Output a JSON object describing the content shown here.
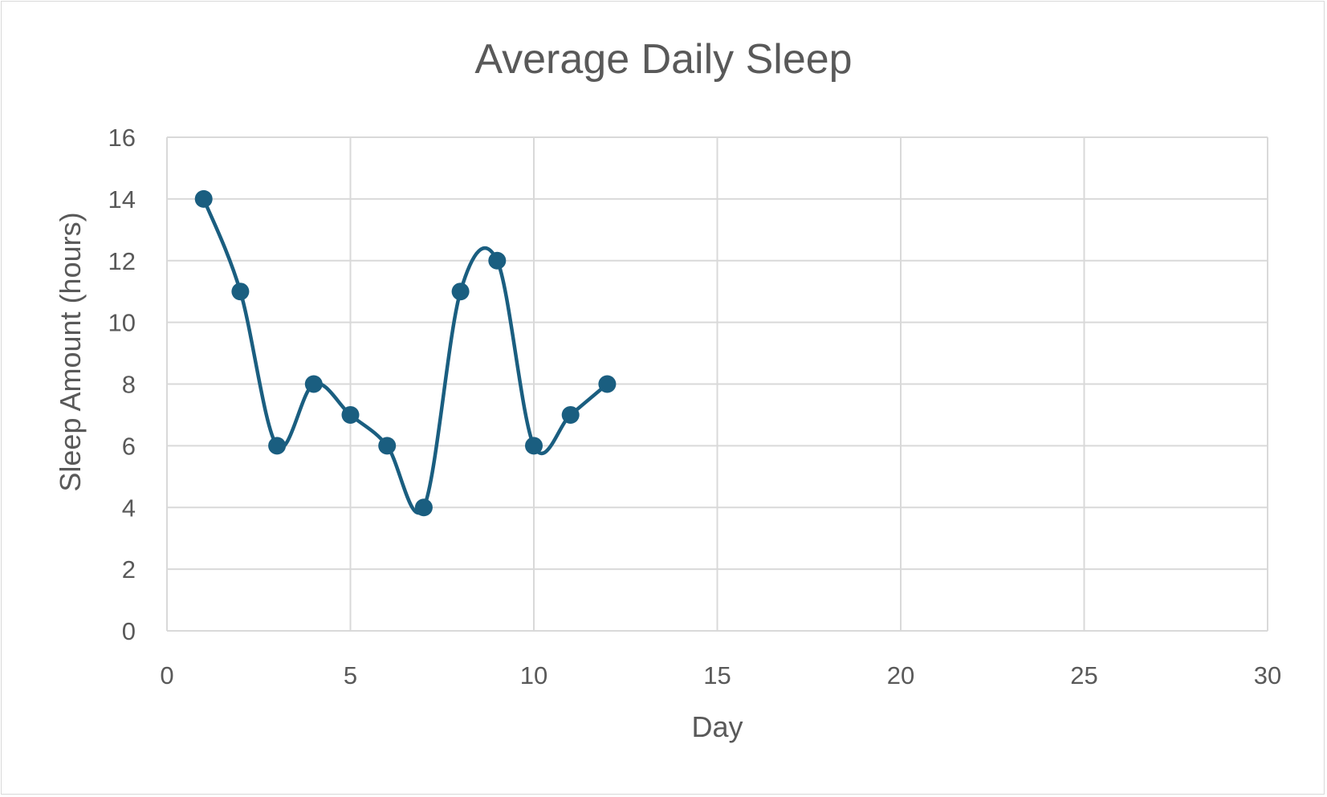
{
  "chart_data": {
    "type": "scatter",
    "title": "Average Daily Sleep",
    "xlabel": "Day",
    "ylabel": "Sleep Amount (hours)",
    "xlim": [
      0,
      30
    ],
    "ylim": [
      0,
      16
    ],
    "x_ticks": [
      "0",
      "5",
      "10",
      "15",
      "20",
      "25",
      "30"
    ],
    "y_ticks": [
      "0",
      "2",
      "4",
      "6",
      "8",
      "10",
      "12",
      "14",
      "16"
    ],
    "grid": true,
    "legend": "none",
    "line_style": "smoothed",
    "series_color": "#1a5e80",
    "series": [
      {
        "x": [
          1,
          2,
          3,
          4,
          5,
          6,
          7,
          8,
          9,
          10,
          11,
          12
        ],
        "y": [
          14,
          11,
          6,
          8,
          7,
          6,
          4,
          11,
          12,
          6,
          7,
          8
        ]
      }
    ]
  }
}
